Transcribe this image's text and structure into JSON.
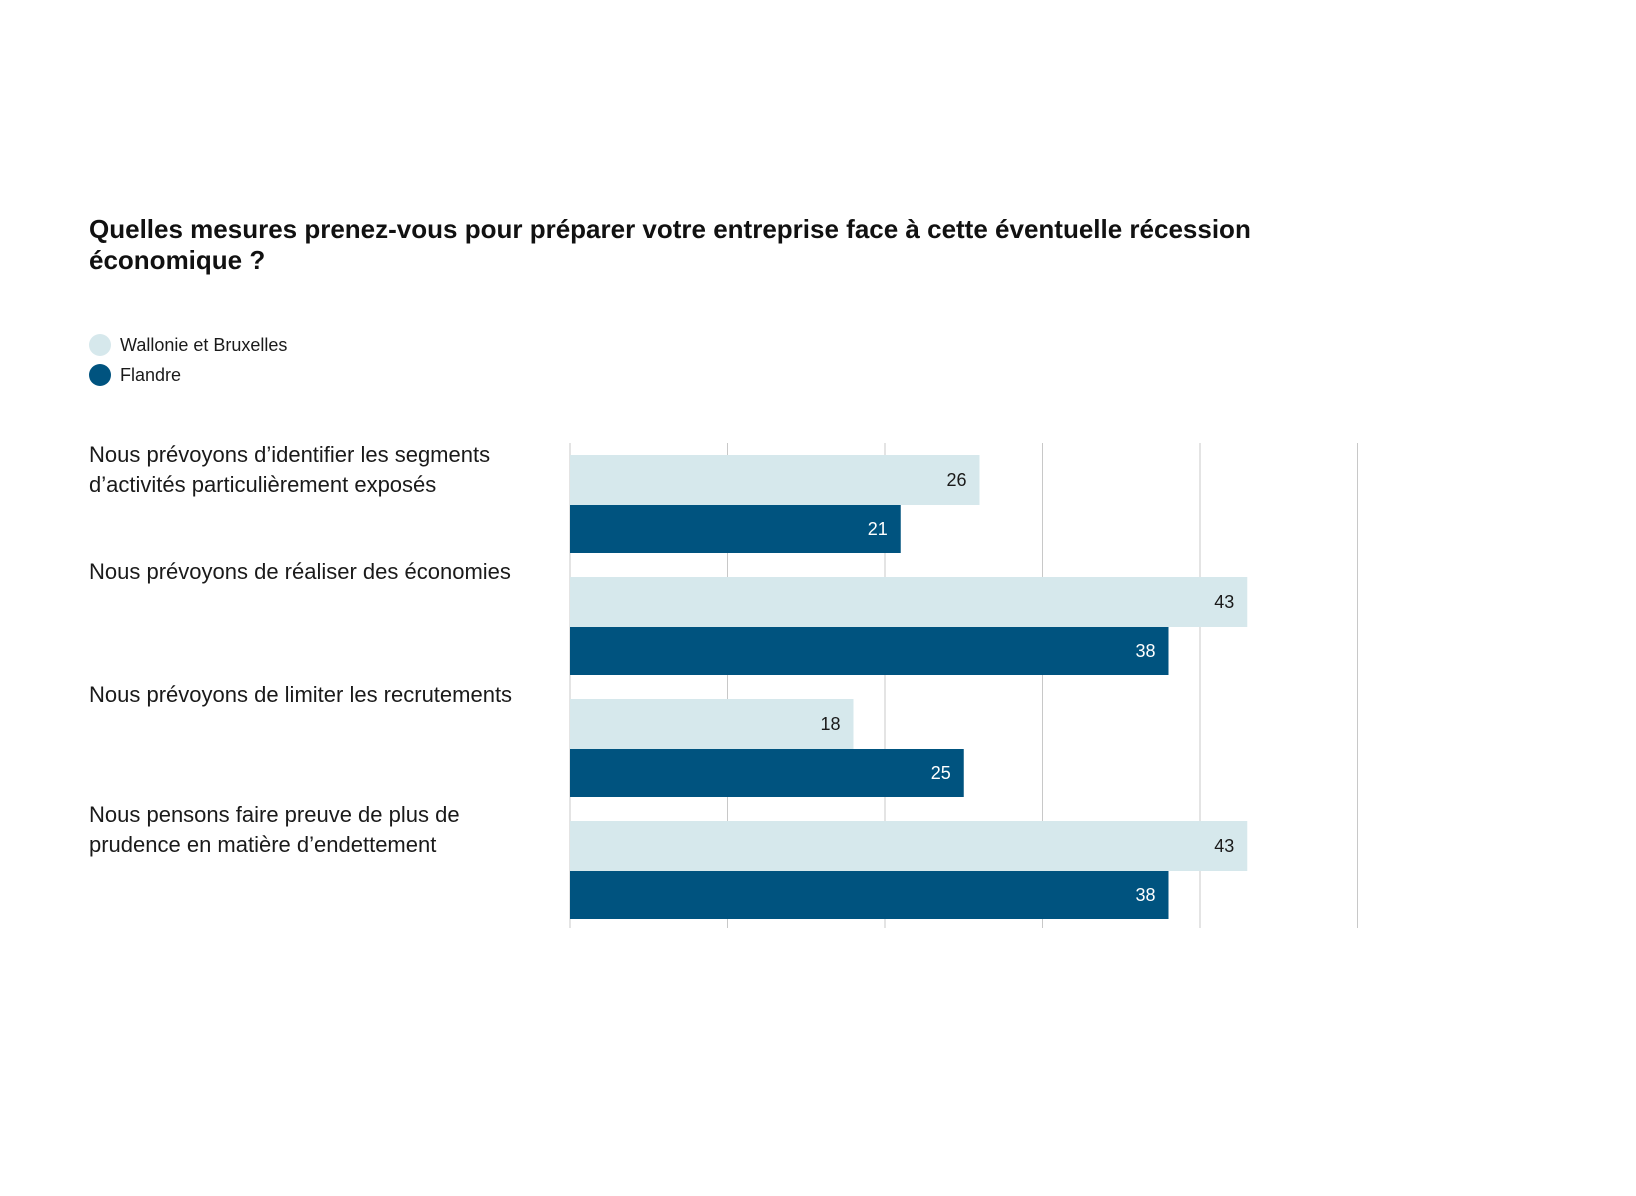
{
  "chart_data": {
    "type": "bar",
    "orientation": "horizontal",
    "title": "Quelles mesures prenez-vous pour préparer votre entreprise face à cette éventuelle récession économique ?",
    "categories": [
      "Nous prévoyons d’identifier les segments d’activités particulièrement exposés",
      "Nous prévoyons de réaliser des économies",
      "Nous prévoyons de limiter les recrutements",
      "Nous pensons faire preuve de plus de prudence en matière d’endettement"
    ],
    "series": [
      {
        "name": "Wallonie et Bruxelles",
        "color": "#d6e8ec",
        "label_color": "#1a1a1a",
        "values": [
          26,
          43,
          18,
          43
        ]
      },
      {
        "name": "Flandre",
        "color": "#00537f",
        "label_color": "#ffffff",
        "values": [
          21,
          38,
          25,
          38
        ]
      }
    ],
    "xlim": [
      0,
      50
    ],
    "gridlines": [
      0,
      10,
      20,
      30,
      40,
      50
    ],
    "grid": true,
    "legend_position": "top-left",
    "xlabel": "",
    "ylabel": ""
  }
}
